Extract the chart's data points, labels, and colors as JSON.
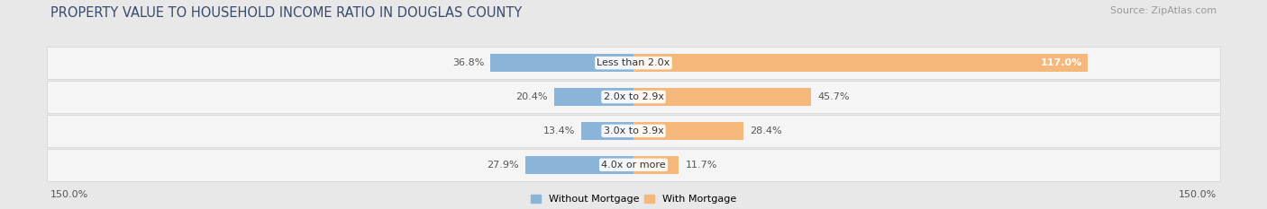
{
  "title": "PROPERTY VALUE TO HOUSEHOLD INCOME RATIO IN DOUGLAS COUNTY",
  "source": "Source: ZipAtlas.com",
  "categories": [
    "Less than 2.0x",
    "2.0x to 2.9x",
    "3.0x to 3.9x",
    "4.0x or more"
  ],
  "without_mortgage": [
    36.8,
    20.4,
    13.4,
    27.9
  ],
  "with_mortgage": [
    117.0,
    45.7,
    28.4,
    11.7
  ],
  "color_without": "#8ab4d8",
  "color_with": "#f5b87a",
  "axis_limit": 150.0,
  "fig_bg_color": "#e8e8e8",
  "row_bg_color": "#f5f5f5",
  "row_border_color": "#d0d0d0",
  "title_color": "#3a4a6b",
  "value_color": "#555555",
  "source_color": "#999999",
  "cat_label_color": "#333333",
  "legend_label_without": "Without Mortgage",
  "legend_label_with": "With Mortgage",
  "title_fontsize": 10.5,
  "tick_fontsize": 8,
  "value_fontsize": 8,
  "cat_fontsize": 8,
  "source_fontsize": 8,
  "legend_fontsize": 8
}
